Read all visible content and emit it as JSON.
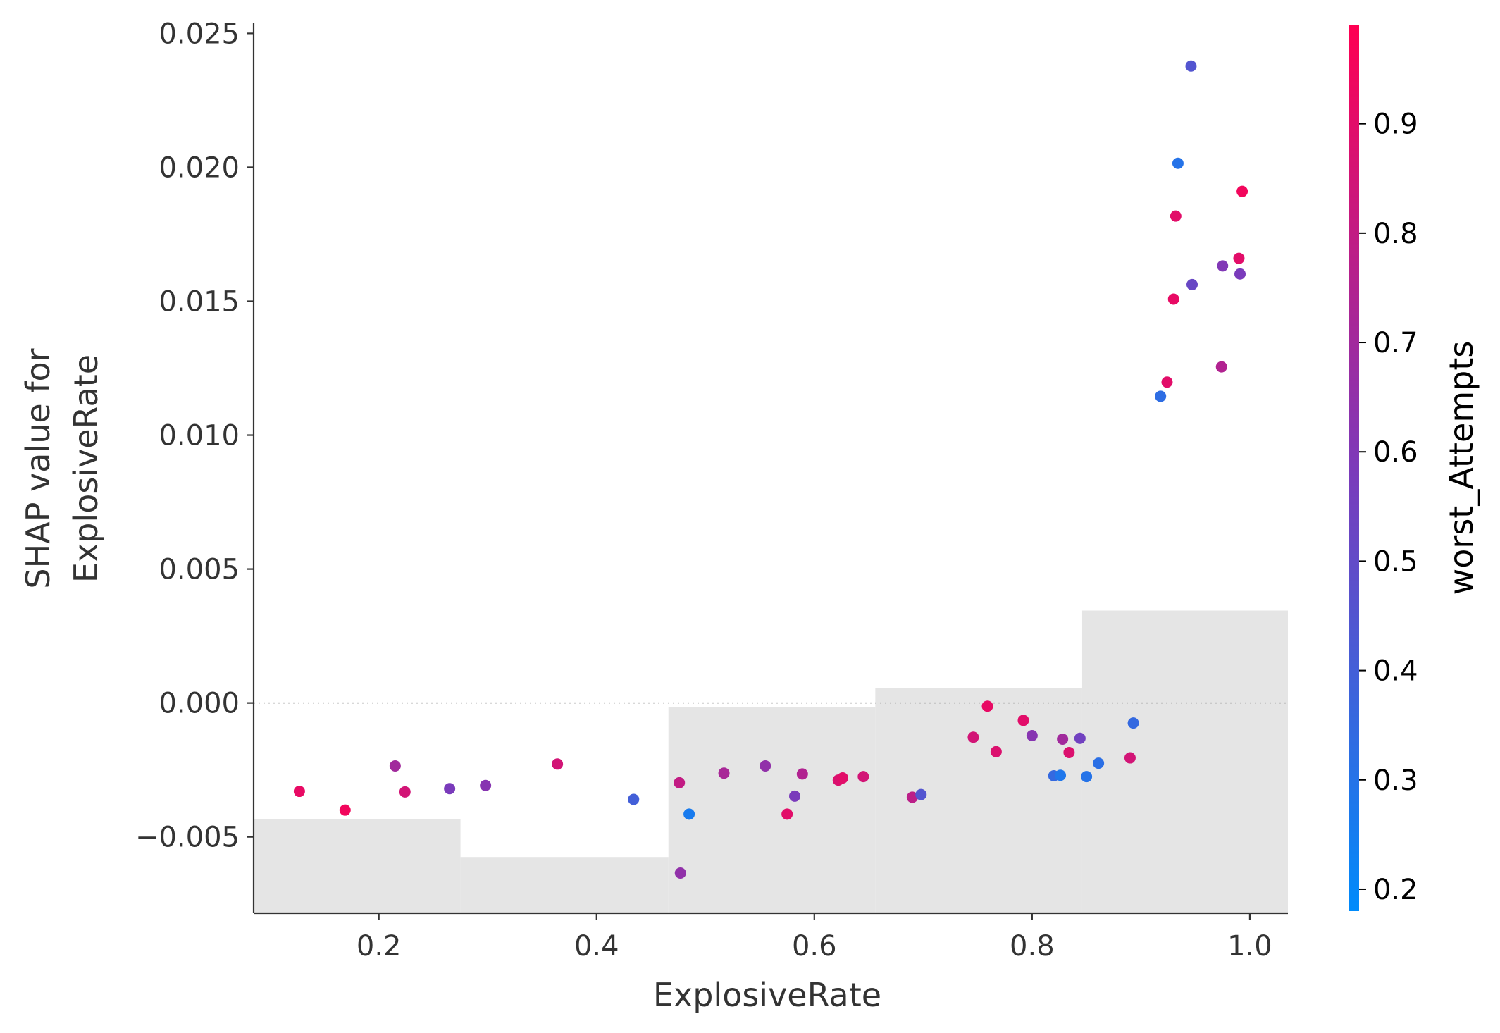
{
  "chart_data": {
    "type": "scatter",
    "xlabel": "ExplosiveRate",
    "ylabel_lines": [
      "SHAP value for",
      "ExplosiveRate"
    ],
    "xlim": [
      0.085,
      1.035
    ],
    "ylim": [
      -0.00785,
      0.0253
    ],
    "x_ticks": [
      0.2,
      0.4,
      0.6,
      0.8,
      1.0
    ],
    "x_tick_labels": [
      "0.2",
      "0.4",
      "0.6",
      "0.8",
      "1.0"
    ],
    "y_ticks": [
      -0.005,
      0.0,
      0.005,
      0.01,
      0.015,
      0.02,
      0.025
    ],
    "y_tick_labels": [
      "−0.005",
      "0.000",
      "0.005",
      "0.010",
      "0.015",
      "0.020",
      "0.025"
    ],
    "zero_line": true,
    "histogram_bins": [
      {
        "x0": 0.085,
        "x1": 0.275,
        "value": -0.00435
      },
      {
        "x0": 0.275,
        "x1": 0.466,
        "value": -0.00575
      },
      {
        "x0": 0.466,
        "x1": 0.656,
        "value": -0.00015
      },
      {
        "x0": 0.656,
        "x1": 0.846,
        "value": 0.00055
      },
      {
        "x0": 0.846,
        "x1": 1.035,
        "value": 0.00345
      }
    ],
    "histogram_color": "#e5e5e5",
    "colorbar": {
      "label": "worst_Attempts",
      "range": [
        0.18,
        0.99
      ],
      "ticks": [
        0.2,
        0.3,
        0.4,
        0.5,
        0.6,
        0.7,
        0.8,
        0.9
      ],
      "tick_labels": [
        "0.2",
        "0.3",
        "0.4",
        "0.5",
        "0.6",
        "0.7",
        "0.8",
        "0.9"
      ],
      "low_color": "#008bfb",
      "mid_color": "#7c3aba",
      "high_color": "#ff0052"
    },
    "points": [
      {
        "x": 0.127,
        "y": -0.0033,
        "c": 0.92
      },
      {
        "x": 0.169,
        "y": -0.004,
        "c": 0.95
      },
      {
        "x": 0.215,
        "y": -0.00235,
        "c": 0.7
      },
      {
        "x": 0.224,
        "y": -0.00332,
        "c": 0.85
      },
      {
        "x": 0.265,
        "y": -0.0032,
        "c": 0.58
      },
      {
        "x": 0.298,
        "y": -0.00308,
        "c": 0.62
      },
      {
        "x": 0.364,
        "y": -0.00228,
        "c": 0.85
      },
      {
        "x": 0.434,
        "y": -0.0036,
        "c": 0.4
      },
      {
        "x": 0.476,
        "y": -0.00298,
        "c": 0.8
      },
      {
        "x": 0.477,
        "y": -0.00635,
        "c": 0.65
      },
      {
        "x": 0.485,
        "y": -0.00415,
        "c": 0.26
      },
      {
        "x": 0.517,
        "y": -0.00262,
        "c": 0.72
      },
      {
        "x": 0.555,
        "y": -0.00235,
        "c": 0.65
      },
      {
        "x": 0.575,
        "y": -0.00415,
        "c": 0.9
      },
      {
        "x": 0.582,
        "y": -0.00348,
        "c": 0.58
      },
      {
        "x": 0.589,
        "y": -0.00265,
        "c": 0.75
      },
      {
        "x": 0.622,
        "y": -0.00288,
        "c": 0.88
      },
      {
        "x": 0.626,
        "y": -0.0028,
        "c": 0.9
      },
      {
        "x": 0.645,
        "y": -0.00275,
        "c": 0.85
      },
      {
        "x": 0.69,
        "y": -0.00352,
        "c": 0.78
      },
      {
        "x": 0.698,
        "y": -0.00342,
        "c": 0.45
      },
      {
        "x": 0.746,
        "y": -0.00128,
        "c": 0.85
      },
      {
        "x": 0.759,
        "y": -0.00012,
        "c": 0.92
      },
      {
        "x": 0.767,
        "y": -0.00182,
        "c": 0.88
      },
      {
        "x": 0.792,
        "y": -0.00065,
        "c": 0.9
      },
      {
        "x": 0.8,
        "y": -0.00122,
        "c": 0.62
      },
      {
        "x": 0.82,
        "y": -0.00272,
        "c": 0.35
      },
      {
        "x": 0.826,
        "y": -0.0027,
        "c": 0.28
      },
      {
        "x": 0.828,
        "y": -0.00135,
        "c": 0.7
      },
      {
        "x": 0.834,
        "y": -0.00185,
        "c": 0.88
      },
      {
        "x": 0.844,
        "y": -0.00132,
        "c": 0.55
      },
      {
        "x": 0.85,
        "y": -0.00275,
        "c": 0.3
      },
      {
        "x": 0.861,
        "y": -0.00225,
        "c": 0.32
      },
      {
        "x": 0.89,
        "y": -0.00205,
        "c": 0.85
      },
      {
        "x": 0.893,
        "y": -0.00075,
        "c": 0.35
      },
      {
        "x": 0.918,
        "y": 0.01145,
        "c": 0.33
      },
      {
        "x": 0.924,
        "y": 0.01198,
        "c": 0.9
      },
      {
        "x": 0.93,
        "y": 0.01508,
        "c": 0.92
      },
      {
        "x": 0.932,
        "y": 0.01818,
        "c": 0.9
      },
      {
        "x": 0.934,
        "y": 0.02015,
        "c": 0.3
      },
      {
        "x": 0.946,
        "y": 0.02378,
        "c": 0.45
      },
      {
        "x": 0.947,
        "y": 0.01562,
        "c": 0.52
      },
      {
        "x": 0.974,
        "y": 0.01255,
        "c": 0.75
      },
      {
        "x": 0.975,
        "y": 0.01632,
        "c": 0.6
      },
      {
        "x": 0.99,
        "y": 0.0166,
        "c": 0.9
      },
      {
        "x": 0.991,
        "y": 0.01602,
        "c": 0.58
      },
      {
        "x": 0.993,
        "y": 0.0191,
        "c": 0.95
      }
    ]
  }
}
